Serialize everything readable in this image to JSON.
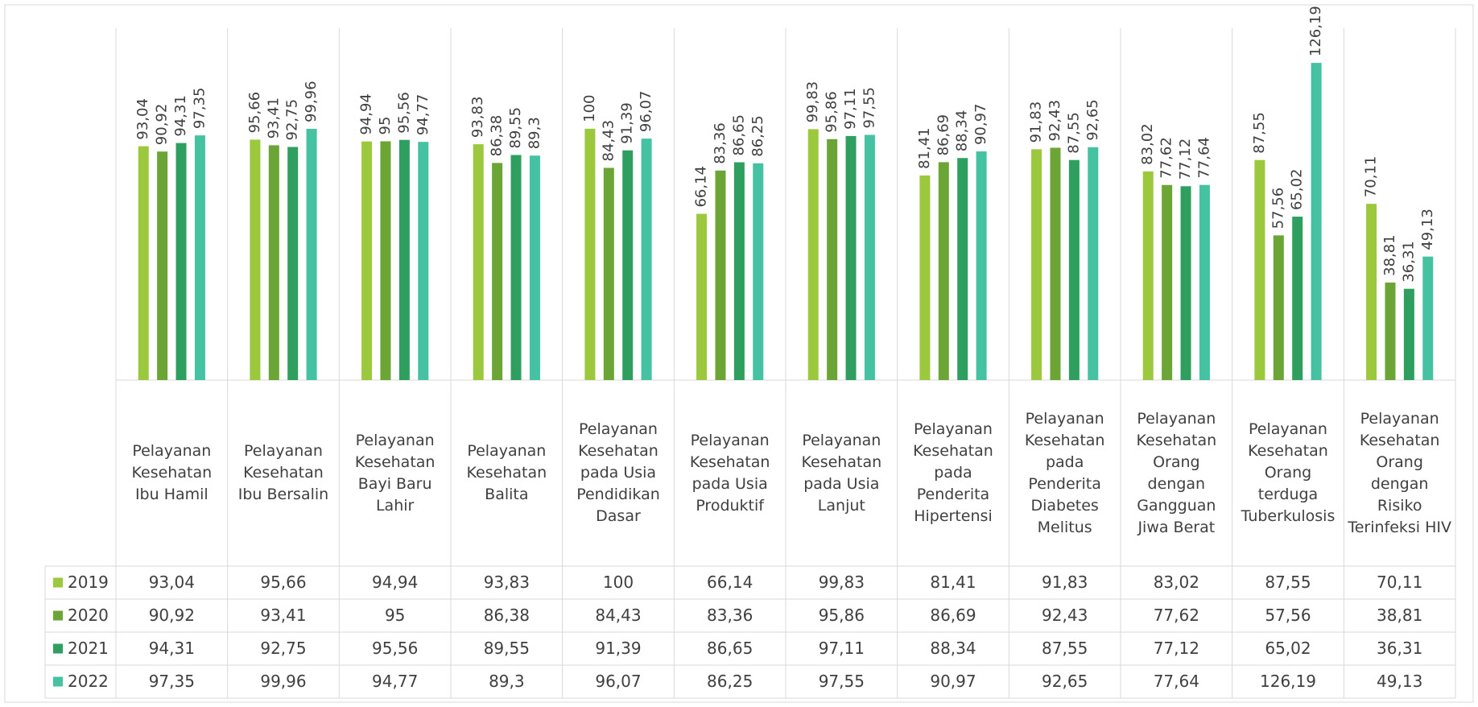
{
  "chart_data": {
    "type": "bar",
    "categories": [
      "Pelayanan Kesehatan Ibu Hamil",
      "Pelayanan Kesehatan Ibu Bersalin",
      "Pelayanan Kesehatan Bayi Baru Lahir",
      "Pelayanan Kesehatan Balita",
      "Pelayanan Kesehatan pada Usia Pendidikan Dasar",
      "Pelayanan Kesehatan pada Usia Produktif",
      "Pelayanan Kesehatan pada Usia Lanjut",
      "Pelayanan Kesehatan pada Penderita Hipertensi",
      "Pelayanan Kesehatan pada Penderita Diabetes Melitus",
      "Pelayanan Kesehatan Orang dengan Gangguan Jiwa Berat",
      "Pelayanan Kesehatan Orang terduga Tuberkulosis",
      "Pelayanan Kesehatan Orang dengan Risiko Terinfeksi HIV"
    ],
    "series": [
      {
        "name": "2019",
        "color": "#9bc83c",
        "values": [
          93.04,
          95.66,
          94.94,
          93.83,
          100,
          66.14,
          99.83,
          81.41,
          91.83,
          83.02,
          87.55,
          70.11
        ],
        "value_labels": [
          "93,04",
          "95,66",
          "94,94",
          "93,83",
          "100",
          "66,14",
          "99,83",
          "81,41",
          "91,83",
          "83,02",
          "87,55",
          "70,11"
        ]
      },
      {
        "name": "2020",
        "color": "#6aa535",
        "values": [
          90.92,
          93.41,
          95,
          86.38,
          84.43,
          83.36,
          95.86,
          86.69,
          92.43,
          77.62,
          57.56,
          38.81
        ],
        "value_labels": [
          "90,92",
          "93,41",
          "95",
          "86,38",
          "84,43",
          "83,36",
          "95,86",
          "86,69",
          "92,43",
          "77,62",
          "57,56",
          "38,81"
        ]
      },
      {
        "name": "2021",
        "color": "#2e9f5f",
        "values": [
          94.31,
          92.75,
          95.56,
          89.55,
          91.39,
          86.65,
          97.11,
          88.34,
          87.55,
          77.12,
          65.02,
          36.31
        ],
        "value_labels": [
          "94,31",
          "92,75",
          "95,56",
          "89,55",
          "91,39",
          "86,65",
          "97,11",
          "88,34",
          "87,55",
          "77,12",
          "65,02",
          "36,31"
        ]
      },
      {
        "name": "2022",
        "color": "#45c2a1",
        "values": [
          97.35,
          99.96,
          94.77,
          89.3,
          96.07,
          86.25,
          97.55,
          90.97,
          92.65,
          77.64,
          126.19,
          49.13
        ],
        "value_labels": [
          "97,35",
          "99,96",
          "94,77",
          "89,3",
          "96,07",
          "86,25",
          "97,55",
          "90,97",
          "92,65",
          "77,64",
          "126,19",
          "49,13"
        ]
      }
    ],
    "ylim": [
      0,
      140
    ]
  }
}
